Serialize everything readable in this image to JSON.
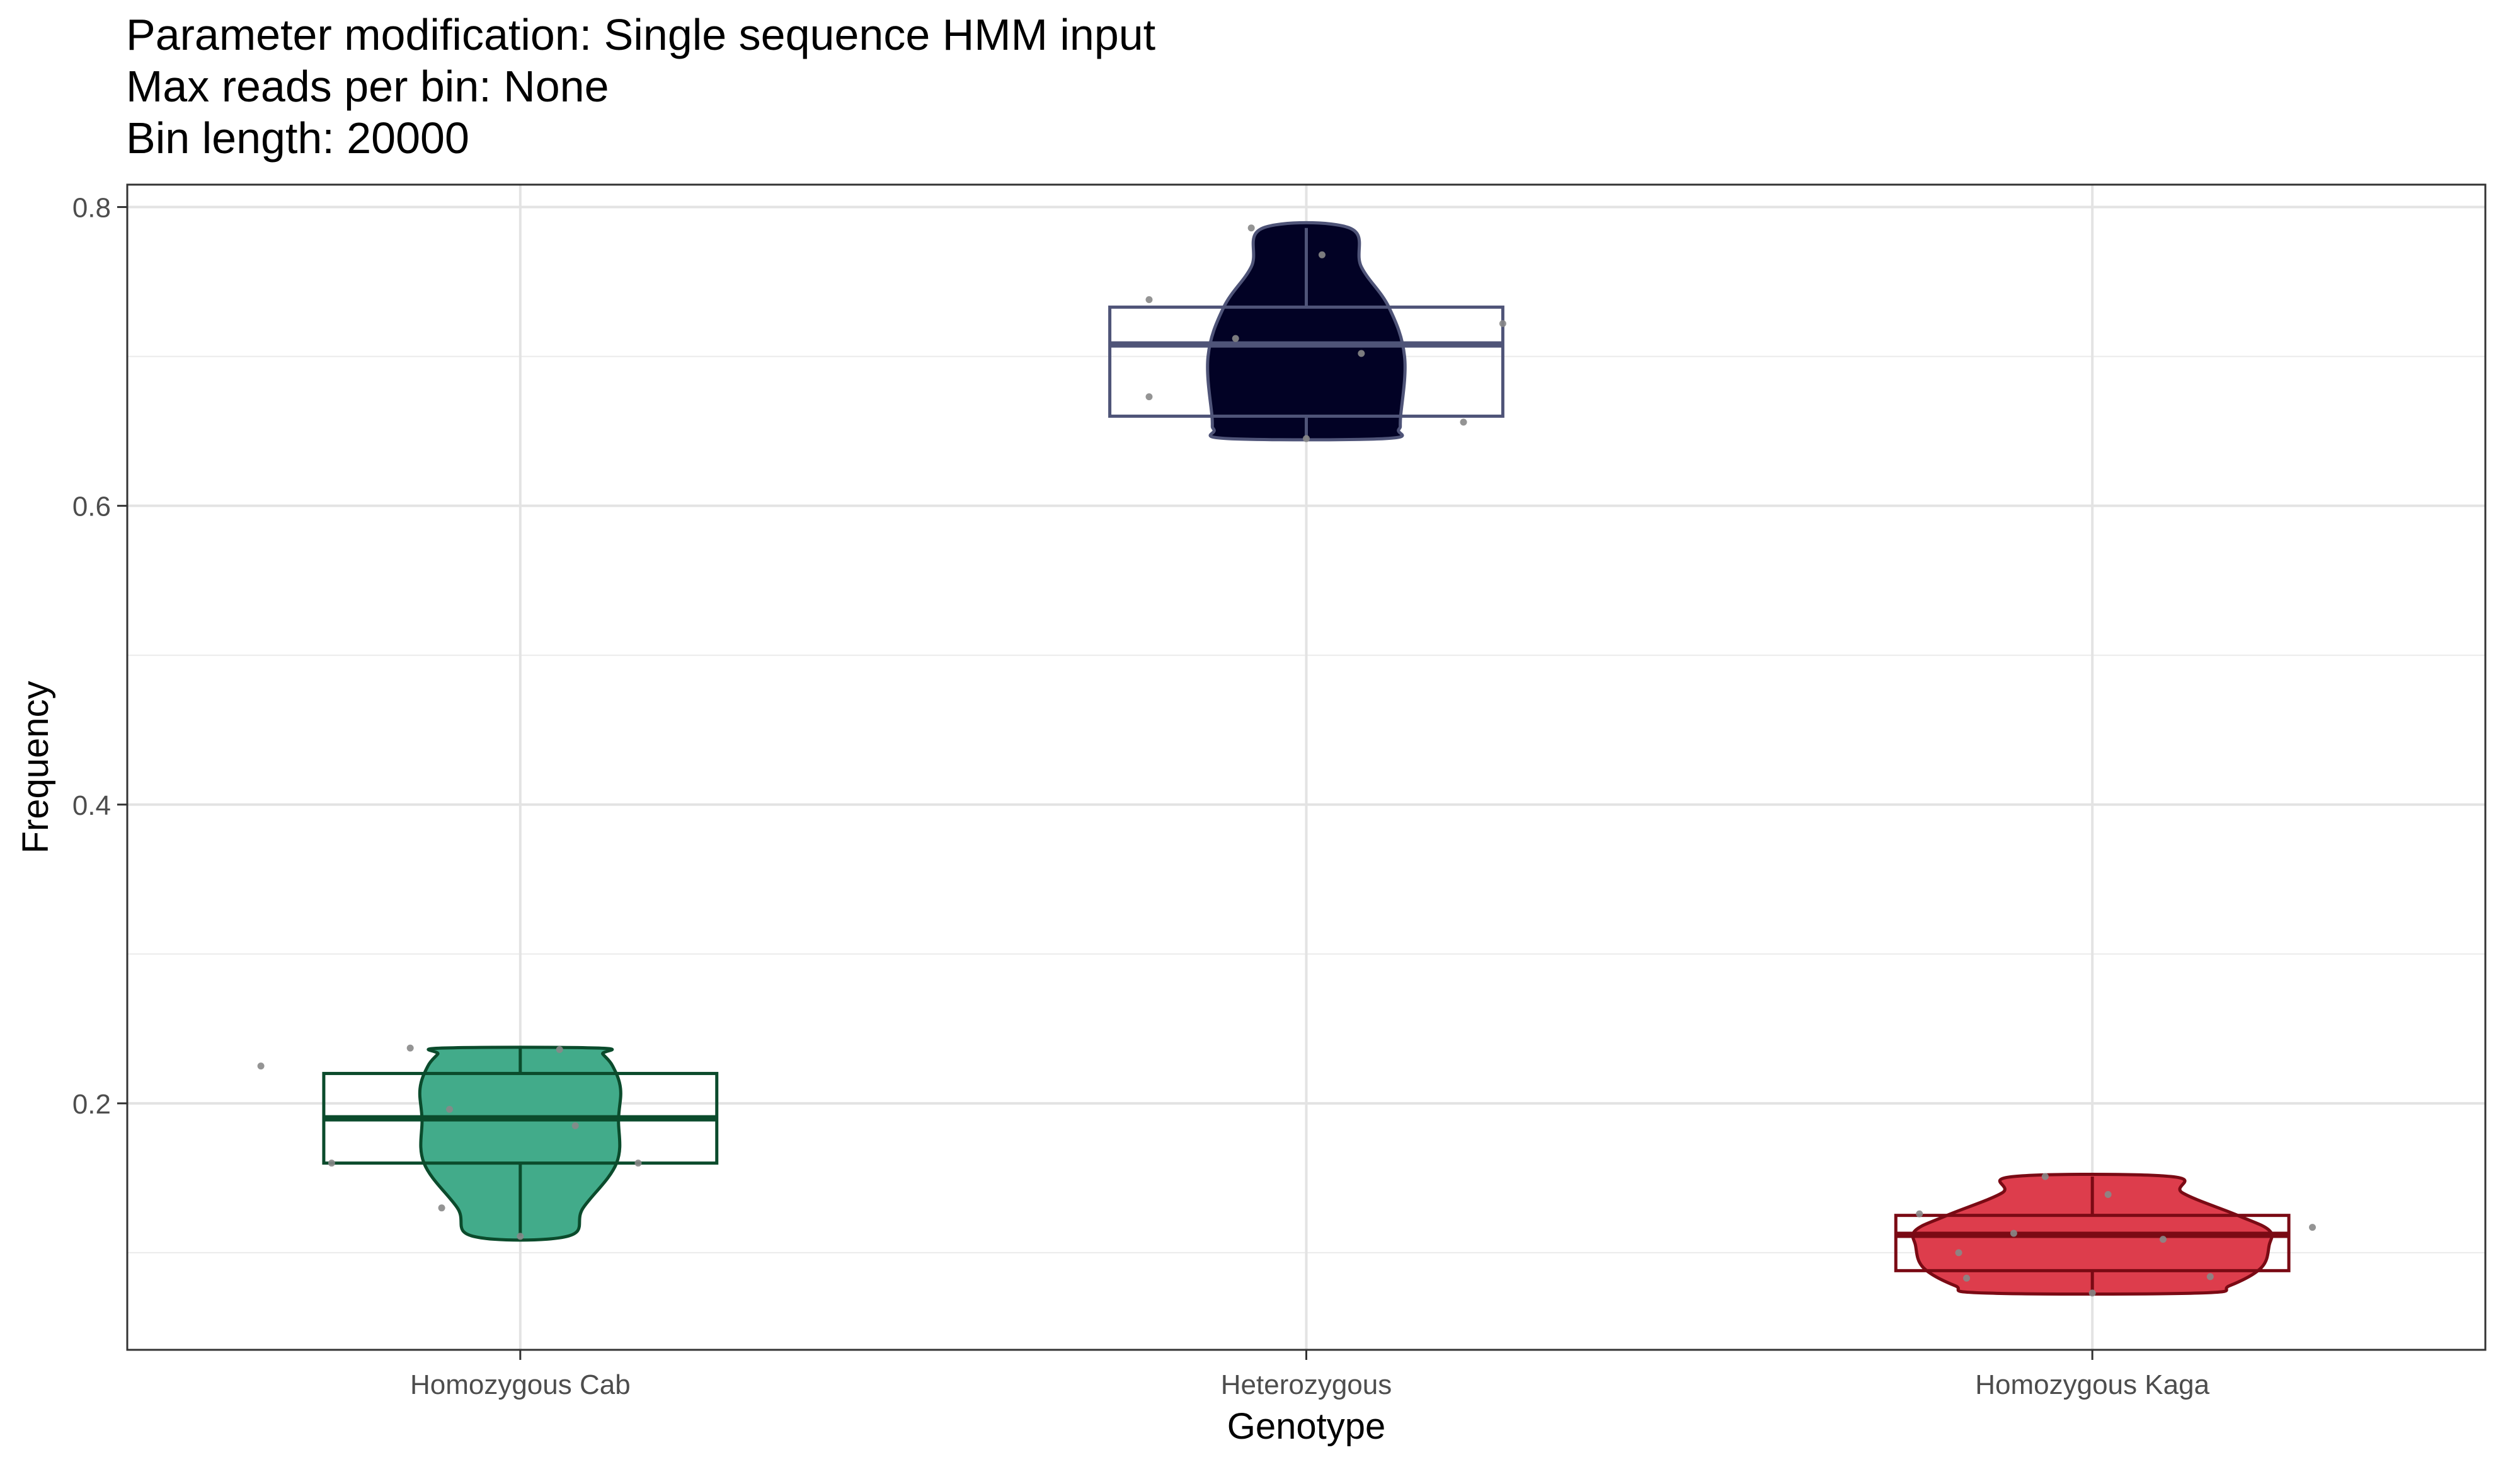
{
  "title_lines": [
    "Parameter modification: Single sequence HMM input",
    "Max reads per bin: None",
    "Bin length: 20000"
  ],
  "chart_data": {
    "type": "violin",
    "xlabel": "Genotype",
    "ylabel": "Frequency",
    "categories": [
      "Homozygous Cab",
      "Heterozygous",
      "Homozygous Kaga"
    ],
    "ylim": [
      0.035,
      0.815
    ],
    "yticks": [
      0.2,
      0.4,
      0.6,
      0.8
    ],
    "yticks_minor": [
      0.1,
      0.3,
      0.5,
      0.7
    ],
    "grid": true,
    "legend": "none",
    "groups": [
      {
        "category": "Homozygous Cab",
        "fill": "#42AB8A",
        "stroke": "#0B4B2C",
        "box": {
          "lower": 0.16,
          "q1": 0.16,
          "median": 0.19,
          "q3": 0.22,
          "upper": 0.237,
          "min": 0.111
        },
        "violin": [
          [
            0.111,
            0.12
          ],
          [
            0.13,
            0.16
          ],
          [
            0.16,
            0.245
          ],
          [
            0.19,
            0.25
          ],
          [
            0.21,
            0.255
          ],
          [
            0.225,
            0.235
          ],
          [
            0.233,
            0.21
          ],
          [
            0.237,
            0.2
          ]
        ],
        "points": [
          [
            -0.33,
            0.225
          ],
          [
            -0.14,
            0.237
          ],
          [
            -0.09,
            0.196
          ],
          [
            -0.1,
            0.13
          ],
          [
            0.0,
            0.111
          ],
          [
            0.05,
            0.236
          ],
          [
            0.07,
            0.185
          ],
          [
            0.15,
            0.16
          ],
          [
            -0.24,
            0.16
          ]
        ]
      },
      {
        "category": "Heterozygous",
        "fill": "#020225",
        "stroke": "#4F5478",
        "box": {
          "lower": 0.66,
          "q1": 0.66,
          "median": 0.708,
          "q3": 0.733,
          "upper": 0.786,
          "min": 0.645
        },
        "violin": [
          [
            0.645,
            0.2
          ],
          [
            0.651,
            0.235
          ],
          [
            0.66,
            0.24
          ],
          [
            0.7,
            0.25
          ],
          [
            0.733,
            0.21
          ],
          [
            0.76,
            0.14
          ],
          [
            0.786,
            0.11
          ]
        ],
        "points": [
          [
            -0.2,
            0.738
          ],
          [
            -0.07,
            0.786
          ],
          [
            -0.09,
            0.712
          ],
          [
            0.02,
            0.768
          ],
          [
            0.07,
            0.702
          ],
          [
            -0.2,
            0.673
          ],
          [
            0.25,
            0.722
          ],
          [
            0.2,
            0.656
          ],
          [
            0.0,
            0.645
          ]
        ]
      },
      {
        "category": "Homozygous Kaga",
        "fill": "#DD3D4C",
        "stroke": "#7A0A14",
        "box": {
          "lower": 0.088,
          "q1": 0.088,
          "median": 0.112,
          "q3": 0.125,
          "upper": 0.151,
          "min": 0.073
        },
        "violin": [
          [
            0.073,
            0.27
          ],
          [
            0.078,
            0.35
          ],
          [
            0.09,
            0.43
          ],
          [
            0.105,
            0.45
          ],
          [
            0.115,
            0.45
          ],
          [
            0.125,
            0.37
          ],
          [
            0.14,
            0.23
          ],
          [
            0.151,
            0.2
          ]
        ],
        "points": [
          [
            -0.22,
            0.126
          ],
          [
            -0.17,
            0.1
          ],
          [
            -0.16,
            0.083
          ],
          [
            -0.1,
            0.113
          ],
          [
            -0.06,
            0.151
          ],
          [
            0.02,
            0.139
          ],
          [
            0.09,
            0.109
          ],
          [
            0.15,
            0.084
          ],
          [
            0.28,
            0.117
          ],
          [
            0.0,
            0.073
          ]
        ]
      }
    ]
  }
}
